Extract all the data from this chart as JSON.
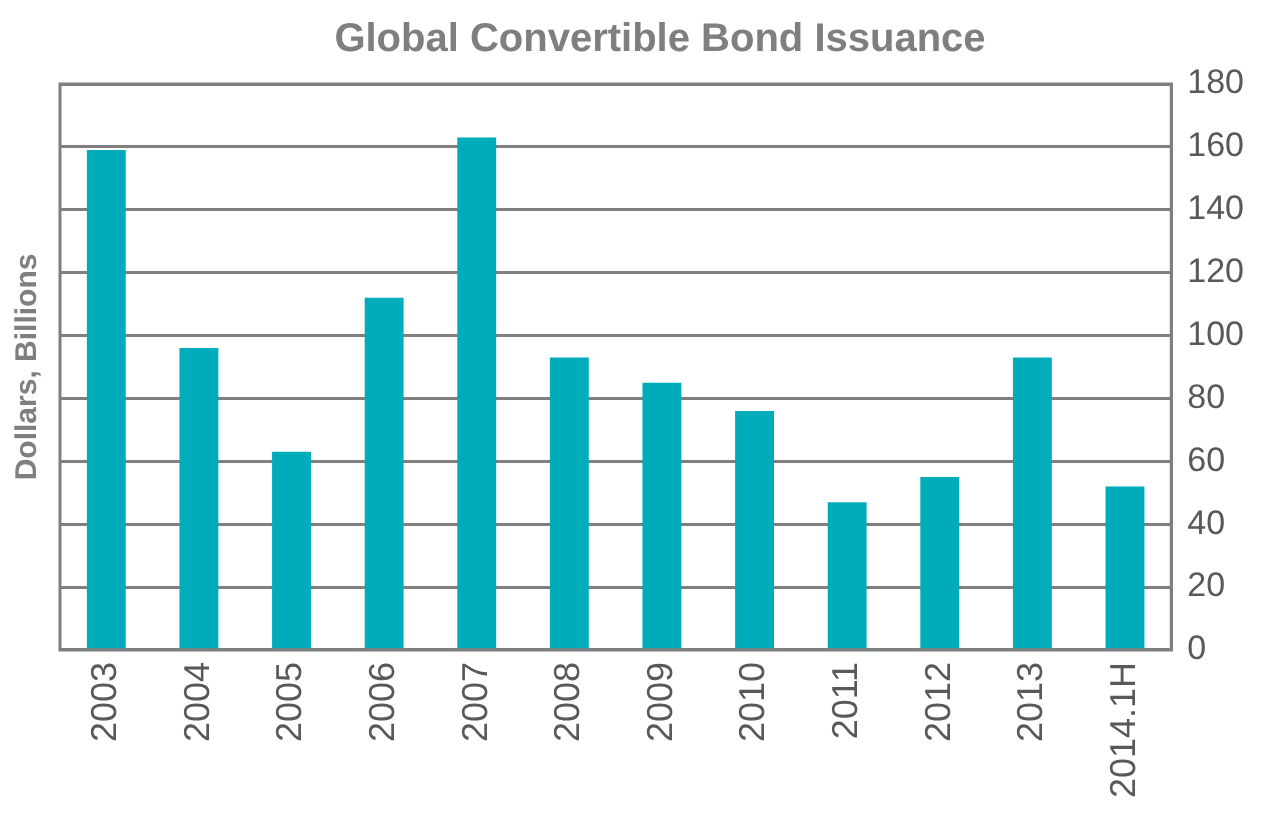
{
  "chart_data": {
    "type": "bar",
    "title": "Global Convertible Bond Issuance",
    "ylabel": "Dollars, Billions",
    "categories": [
      "2003",
      "2004",
      "2005",
      "2006",
      "2007",
      "2008",
      "2009",
      "2010",
      "2011",
      "2012",
      "2013",
      "2014.1H"
    ],
    "values": [
      159,
      96,
      63,
      112,
      163,
      93,
      85,
      76,
      47,
      55,
      93,
      52
    ],
    "color": "#00acba",
    "ylim": [
      0,
      180
    ],
    "yticks": [
      0,
      20,
      40,
      60,
      80,
      100,
      120,
      140,
      160,
      180
    ],
    "grid": "y",
    "legend": false
  }
}
